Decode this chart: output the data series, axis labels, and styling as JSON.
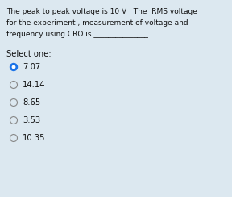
{
  "background_color": "#dce8f0",
  "question_lines": [
    "The peak to peak voltage is 10 V . The  RMS voltage",
    "for the experiment , measurement of voltage and",
    "frequency using CRO is _______________"
  ],
  "select_label": "Select one:",
  "options": [
    "7.07",
    "14.14",
    "8.65",
    "3.53",
    "10.35"
  ],
  "selected_index": 0,
  "selected_fill_color": "#1a73e8",
  "selected_border_color": "#1a73e8",
  "unselected_border": "#888888",
  "text_color": "#111111",
  "font_size_question": 6.5,
  "font_size_options": 7.2,
  "font_size_select": 7.2
}
